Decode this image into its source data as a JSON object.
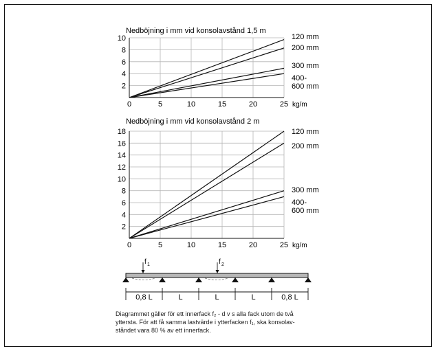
{
  "chart_data": [
    {
      "type": "line",
      "title": "Nedböjning i mm vid konsolavstånd 1,5 m",
      "xlabel": "kg/m",
      "ylabel": "",
      "xlim": [
        0,
        25
      ],
      "ylim": [
        0,
        10
      ],
      "xticks": [
        "0",
        "5",
        "10",
        "15",
        "20",
        "25"
      ],
      "yticks": [
        "2",
        "4",
        "6",
        "8",
        "10"
      ],
      "grid": true,
      "series": [
        {
          "name": "120 mm",
          "x": [
            0,
            25
          ],
          "y": [
            0,
            9.7
          ]
        },
        {
          "name": "200 mm",
          "x": [
            0,
            25
          ],
          "y": [
            0,
            8.3
          ]
        },
        {
          "name": "300 mm",
          "x": [
            0,
            25
          ],
          "y": [
            0,
            4.9
          ]
        },
        {
          "name": "400-\n600 mm",
          "x": [
            0,
            25
          ],
          "y": [
            0,
            4.0
          ]
        }
      ],
      "legend": "right"
    },
    {
      "type": "line",
      "title": "Nedböjning i mm vid konsolavstånd 2 m",
      "xlabel": "kg/m",
      "ylabel": "",
      "xlim": [
        0,
        25
      ],
      "ylim": [
        0,
        18
      ],
      "xticks": [
        "0",
        "5",
        "10",
        "15",
        "20",
        "25"
      ],
      "yticks": [
        "2",
        "4",
        "6",
        "8",
        "10",
        "12",
        "14",
        "16",
        "18"
      ],
      "grid": true,
      "series": [
        {
          "name": "120 mm",
          "x": [
            0,
            25
          ],
          "y": [
            0,
            18
          ]
        },
        {
          "name": "200 mm",
          "x": [
            0,
            25
          ],
          "y": [
            0,
            16
          ]
        },
        {
          "name": "300 mm",
          "x": [
            0,
            25
          ],
          "y": [
            0,
            8
          ]
        },
        {
          "name": "400-\n600 mm",
          "x": [
            0,
            25
          ],
          "y": [
            0,
            7
          ]
        }
      ],
      "legend": "right"
    }
  ],
  "beam": {
    "load_labels": [
      "f",
      "f"
    ],
    "load_subs": [
      "1",
      "2"
    ],
    "span_labels": [
      "0,8 L",
      "L",
      "L",
      "L",
      "0,8 L"
    ]
  },
  "note_lines": [
    "Diagrammet gäller för ett innerfack f₂ - d v s alla fack utom de två",
    "yttersta. För att få samma lastvärde i ytterfacken f₁, ska konsolav-",
    "ståndet vara 80 % av ett innerfack."
  ],
  "colors": {
    "line": "#111111",
    "grid": "#b5b5b5",
    "beam": "#b8b8b8"
  }
}
